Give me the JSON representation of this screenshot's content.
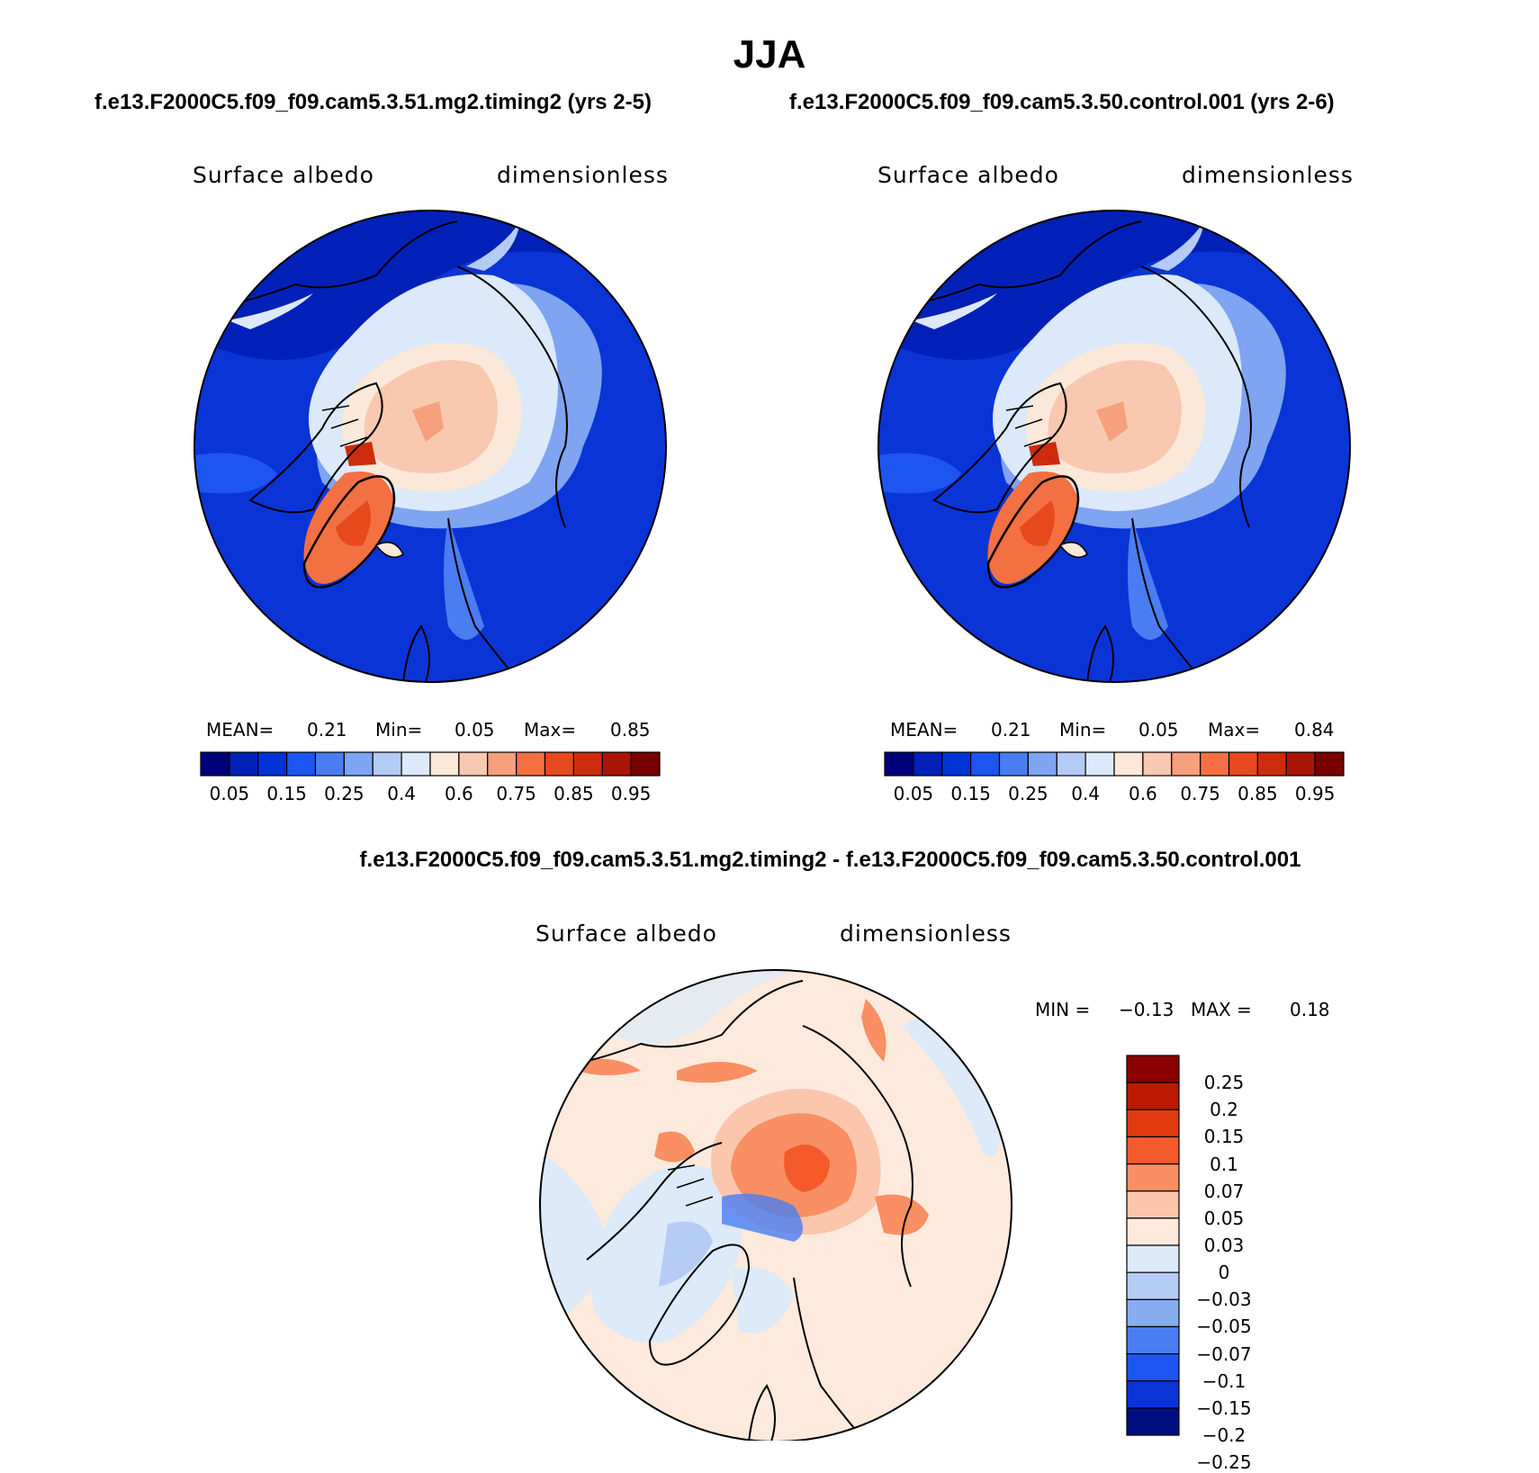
{
  "figure": {
    "title": "JJA",
    "panel_a_title": "f.e13.F2000C5.f09_f09.cam5.3.51.mg2.timing2 (yrs 2-5)",
    "panel_b_title": "f.e13.F2000C5.f09_f09.cam5.3.50.control.001 (yrs 2-6)",
    "diff_title": "f.e13.F2000C5.f09_f09.cam5.3.51.mg2.timing2 - f.e13.F2000C5.f09_f09.cam5.3.50.control.001"
  },
  "panels": [
    {
      "variable": "Surface albedo",
      "units": "dimensionless",
      "mean_label": "MEAN=",
      "mean": "0.21",
      "min_label": "Min=",
      "min": "0.05",
      "max_label": "Max=",
      "max": "0.85"
    },
    {
      "variable": "Surface albedo",
      "units": "dimensionless",
      "mean_label": "MEAN=",
      "mean": "0.21",
      "min_label": "Min=",
      "min": "0.05",
      "max_label": "Max=",
      "max": "0.84"
    }
  ],
  "diff_panel": {
    "variable": "Surface albedo",
    "units": "dimensionless",
    "min_label": "MIN =",
    "min": "−0.13",
    "max_label": "MAX =",
    "max": "0.18"
  },
  "abs_colorbar": {
    "colors": [
      "#00007a",
      "#0020b8",
      "#0033d6",
      "#1c55f0",
      "#4a7df2",
      "#7ea4f2",
      "#b4cbf6",
      "#dce9fa",
      "#fbe8d8",
      "#f9c8b0",
      "#f7a07e",
      "#f27042",
      "#e64a1c",
      "#cc2c0c",
      "#a81608",
      "#780000"
    ],
    "labels": [
      "0.05",
      "0.15",
      "0.25",
      "0.4",
      "0.6",
      "0.75",
      "0.85",
      "0.95"
    ]
  },
  "diff_colorbar": {
    "colors": [
      "#8b0000",
      "#bb1a00",
      "#e23a10",
      "#f55a2a",
      "#f98f62",
      "#fbc6ac",
      "#fdeadd",
      "#dceaf9",
      "#b5cdf5",
      "#88aef1",
      "#4a7df2",
      "#1c55f0",
      "#0a34d6",
      "#000f80"
    ],
    "labels": [
      "0.25",
      "0.2",
      "0.15",
      "0.1",
      "0.07",
      "0.05",
      "0.03",
      "0",
      "−0.03",
      "−0.05",
      "−0.07",
      "−0.1",
      "−0.15",
      "−0.2",
      "−0.25"
    ]
  }
}
